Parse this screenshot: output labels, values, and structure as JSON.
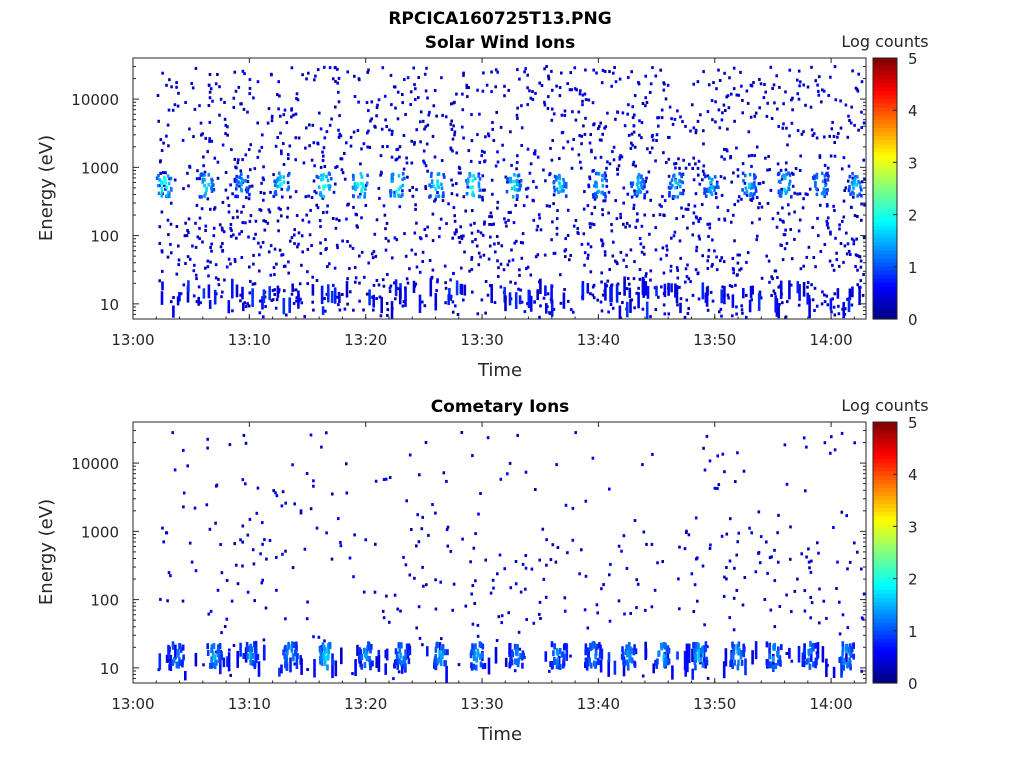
{
  "figure": {
    "filename_title": "RPCICA160725T13.PNG"
  },
  "colorbar": {
    "label": "Log counts",
    "min": 0,
    "max": 5,
    "ticks": [
      "0",
      "1",
      "2",
      "3",
      "4",
      "5"
    ],
    "colormap": "jet"
  },
  "chart_data": [
    {
      "type": "heatmap",
      "title": "Solar Wind Ions",
      "xlabel": "Time",
      "ylabel": "Energy (eV)",
      "x_ticks": [
        "13:00",
        "13:10",
        "13:20",
        "13:30",
        "13:40",
        "13:50",
        "14:00"
      ],
      "y_ticks": [
        "10",
        "100",
        "1000",
        "10000"
      ],
      "y_scale": "log",
      "xlim": [
        "13:00",
        "14:03"
      ],
      "ylim": [
        6,
        40000
      ],
      "colorbar_label": "Log counts",
      "clim": [
        0,
        5
      ],
      "grid": false,
      "peak_log_counts": 2.3,
      "peak_energy_ev": 550,
      "data_start": "13:02",
      "peaks": [
        {
          "time": "13:02.6",
          "log_counts": 2.3
        },
        {
          "time": "13:06.2",
          "log_counts": 1.9
        },
        {
          "time": "13:09.3",
          "log_counts": 1.6
        },
        {
          "time": "13:12.7",
          "log_counts": 2.1
        },
        {
          "time": "13:16.3",
          "log_counts": 2.2
        },
        {
          "time": "13:19.4",
          "log_counts": 2.3
        },
        {
          "time": "13:22.6",
          "log_counts": 2.2
        },
        {
          "time": "13:26.0",
          "log_counts": 2.0
        },
        {
          "time": "13:29.1",
          "log_counts": 2.2
        },
        {
          "time": "13:32.6",
          "log_counts": 2.0
        },
        {
          "time": "13:36.6",
          "log_counts": 1.8
        },
        {
          "time": "13:40.0",
          "log_counts": 1.8
        },
        {
          "time": "13:43.3",
          "log_counts": 1.7
        },
        {
          "time": "13:46.6",
          "log_counts": 1.8
        },
        {
          "time": "13:49.6",
          "log_counts": 1.7
        },
        {
          "time": "13:52.8",
          "log_counts": 1.8
        },
        {
          "time": "13:55.9",
          "log_counts": 1.9
        },
        {
          "time": "13:59.0",
          "log_counts": 1.8
        },
        {
          "time": "14:02.0",
          "log_counts": 1.7
        }
      ]
    },
    {
      "type": "heatmap",
      "title": "Cometary Ions",
      "xlabel": "Time",
      "ylabel": "Energy (eV)",
      "x_ticks": [
        "13:00",
        "13:10",
        "13:20",
        "13:30",
        "13:40",
        "13:50",
        "14:00"
      ],
      "y_ticks": [
        "10",
        "100",
        "1000",
        "10000"
      ],
      "y_scale": "log",
      "xlim": [
        "13:00",
        "14:03"
      ],
      "ylim": [
        6,
        40000
      ],
      "colorbar_label": "Log counts",
      "clim": [
        0,
        5
      ],
      "grid": false,
      "peak_log_counts": 1.9,
      "peak_energy_ev": 15,
      "data_start": "13:02",
      "peaks": [
        {
          "time": "13:03.6",
          "log_counts": 1.5
        },
        {
          "time": "13:06.9",
          "log_counts": 1.6
        },
        {
          "time": "13:10.0",
          "log_counts": 1.4
        },
        {
          "time": "13:13.4",
          "log_counts": 1.6
        },
        {
          "time": "13:16.5",
          "log_counts": 1.9
        },
        {
          "time": "13:19.9",
          "log_counts": 1.5
        },
        {
          "time": "13:23.0",
          "log_counts": 1.5
        },
        {
          "time": "13:26.3",
          "log_counts": 1.6
        },
        {
          "time": "13:29.5",
          "log_counts": 1.6
        },
        {
          "time": "13:32.9",
          "log_counts": 1.4
        },
        {
          "time": "13:36.4",
          "log_counts": 1.5
        },
        {
          "time": "13:39.4",
          "log_counts": 1.5
        },
        {
          "time": "13:42.5",
          "log_counts": 1.5
        },
        {
          "time": "13:45.4",
          "log_counts": 1.7
        },
        {
          "time": "13:48.6",
          "log_counts": 1.8
        },
        {
          "time": "13:51.8",
          "log_counts": 1.6
        },
        {
          "time": "13:55.0",
          "log_counts": 1.6
        },
        {
          "time": "13:58.1",
          "log_counts": 1.5
        },
        {
          "time": "14:01.2",
          "log_counts": 1.6
        }
      ]
    }
  ]
}
